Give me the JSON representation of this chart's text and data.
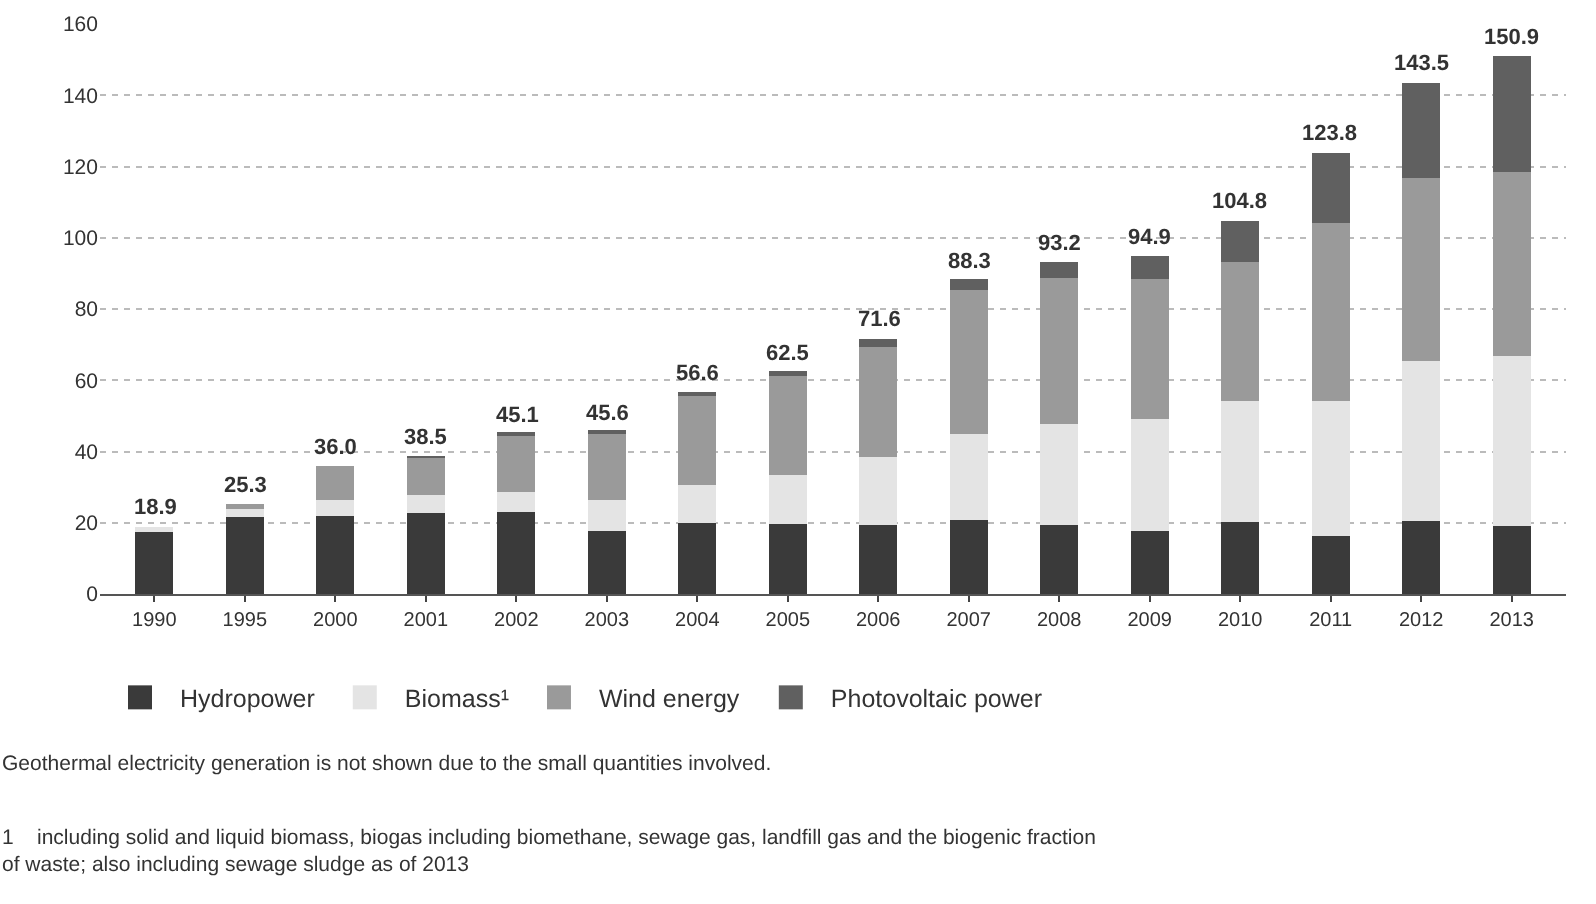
{
  "chart_data": {
    "type": "bar",
    "stacked": true,
    "categories": [
      "1990",
      "1995",
      "2000",
      "2001",
      "2002",
      "2003",
      "2004",
      "2005",
      "2006",
      "2007",
      "2008",
      "2009",
      "2010",
      "2011",
      "2012",
      "2013"
    ],
    "series": [
      {
        "name": "Hydropower",
        "color": "#3a3a3a",
        "values": [
          17.8,
          21.6,
          21.8,
          22.7,
          22.9,
          17.7,
          20.0,
          19.6,
          19.4,
          20.8,
          19.4,
          17.8,
          20.2,
          16.4,
          20.4,
          19.0
        ]
      },
      {
        "name": "Biomass¹",
        "color": "#e4e4e4",
        "values": [
          1.1,
          2.2,
          4.5,
          5.1,
          5.8,
          8.6,
          10.5,
          13.7,
          19.1,
          24.1,
          28.2,
          31.3,
          34.0,
          37.8,
          45.1,
          47.7
        ]
      },
      {
        "name": "Wind energy",
        "color": "#9a9a9a",
        "values": [
          0,
          1.5,
          9.7,
          10.5,
          16.2,
          18.9,
          25.5,
          27.9,
          30.9,
          40.3,
          41.2,
          39.2,
          38.9,
          50.0,
          51.4,
          51.8
        ]
      },
      {
        "name": "Photovoltaic power",
        "color": "#606060",
        "values": [
          0,
          0,
          0,
          0.2,
          0.2,
          0.4,
          0.6,
          1.3,
          2.2,
          3.1,
          4.4,
          6.6,
          11.7,
          19.6,
          26.6,
          32.4
        ]
      }
    ],
    "totals": [
      "18.9",
      "25.3",
      "36.0",
      "38.5",
      "45.1",
      "45.6",
      "56.6",
      "62.5",
      "71.6",
      "88.3",
      "93.2",
      "94.9",
      "104.8",
      "123.8",
      "143.5",
      "150.9"
    ],
    "ylim": [
      0,
      160
    ],
    "yticks": [
      0,
      20,
      40,
      60,
      80,
      100,
      120,
      140,
      160
    ],
    "grid": "y",
    "legend": "bottom",
    "annotations": [
      "Geothermal electricity generation is not shown due to the small quantities involved.",
      "1    including solid and liquid biomass, biogas including biomethane, sewage gas, landfill gas and the biogenic fraction\nof waste; also including sewage sludge as of 2013"
    ]
  }
}
